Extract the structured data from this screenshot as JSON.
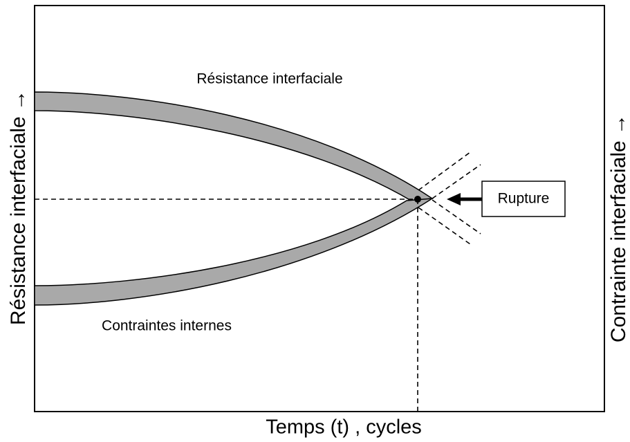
{
  "axes": {
    "x_label": "Temps (t) , cycles",
    "y_left_label": "Résistance interfaciale →",
    "y_right_label": "Contrainte interfaciale →"
  },
  "curves": [
    {
      "label": "Résistance interfaciale"
    },
    {
      "label": "Contraintes internes"
    }
  ],
  "annotation": {
    "label": "Rupture"
  }
}
